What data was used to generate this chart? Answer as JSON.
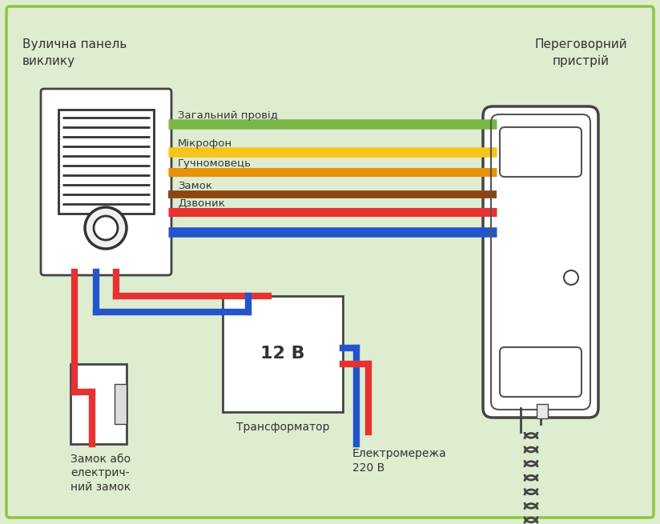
{
  "bg_color": "#deecd0",
  "border_color": "#8dc63f",
  "title_left": "Вулична панель\nвиклику",
  "title_right": "Переговорний\nпристрій",
  "wire_labels": [
    "Загальний провід",
    "Мікрофон",
    "Гучномовець",
    "Замок",
    "Дзвоник"
  ],
  "wire_colors": [
    "#7ab648",
    "#f5c518",
    "#e8920a",
    "#8b4513",
    "#e63232"
  ],
  "wire_blue": "#2255cc",
  "wire_red": "#e63232",
  "transformer_label": "12 В",
  "transformer_sub": "Трансформатор",
  "lock_label": "Замок або\nелектрич-\nний замок",
  "power_label": "Електромережа\n220 В",
  "text_color": "#333333",
  "font_size": 10
}
